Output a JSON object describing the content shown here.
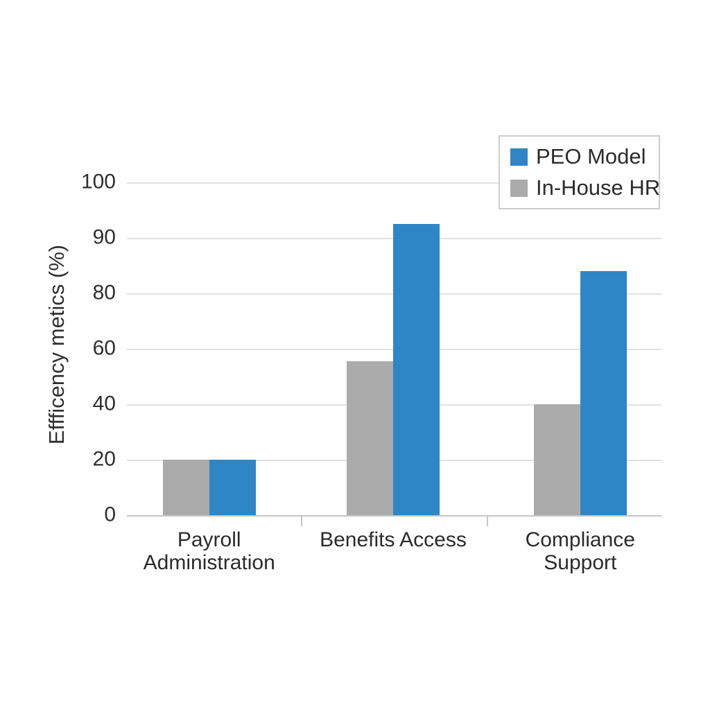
{
  "chart_data": {
    "type": "bar",
    "categories": [
      "Payroll Administration",
      "Benefits Access",
      "Compliance Support"
    ],
    "series": [
      {
        "name": "PEO Model",
        "color": "#2E86C6",
        "values": [
          20,
          92.5,
          84
        ]
      },
      {
        "name": "In-House HR",
        "color": "#ABABAB",
        "values": [
          20,
          55.5,
          40
        ]
      }
    ],
    "title": "",
    "xlabel": "",
    "ylabel": "Effficency metics (%)",
    "y_ticks": [
      0,
      20,
      40,
      60,
      80,
      90,
      100
    ],
    "y_tick_labels": [
      "0",
      "20",
      "40",
      "60",
      "80",
      "90",
      "100"
    ],
    "ylim": [
      0,
      100
    ],
    "grid": true,
    "legend_position": "top-right",
    "colors": {
      "grid": "#E2E2E2",
      "axis": "#C6C6C6",
      "text": "#2F2F2F",
      "legend_border": "#CCCCCC",
      "background": "#FFFFFF"
    }
  }
}
